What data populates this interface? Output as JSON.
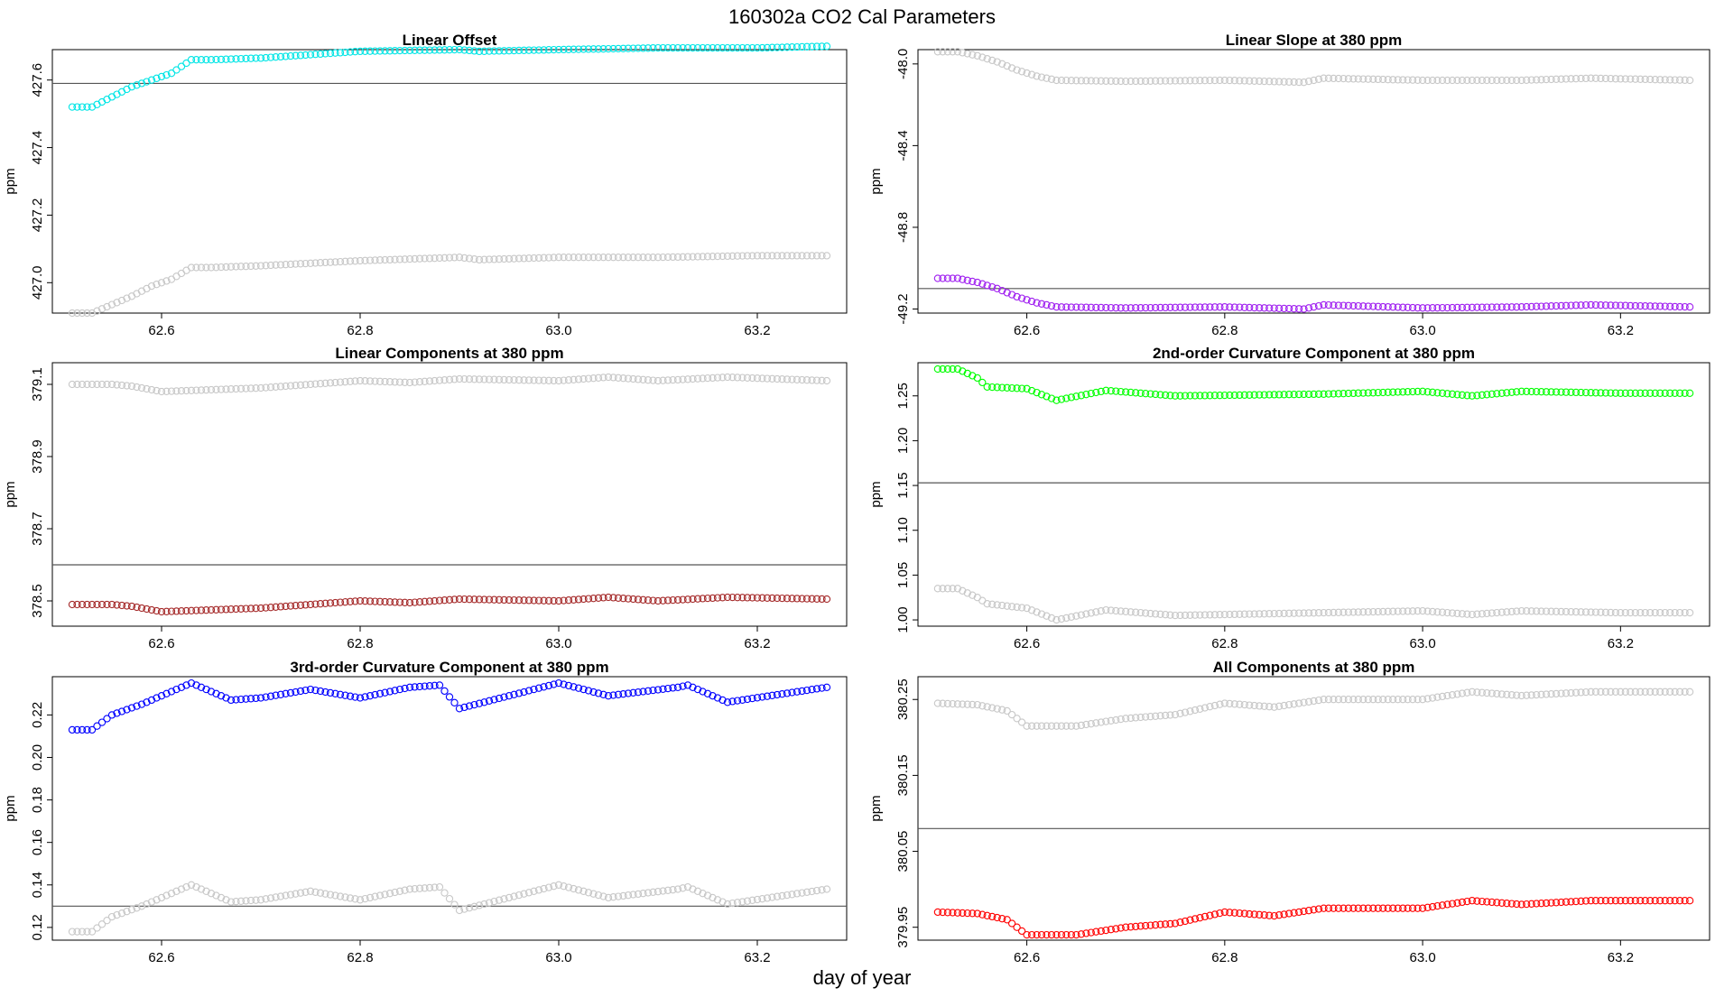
{
  "figure": {
    "title": "160302a   CO2 Cal Parameters",
    "xlabel": "day of year"
  },
  "colors": {
    "ref_series": "#c8c8c8",
    "hline": "#555555",
    "frame": "#000000"
  },
  "chart_data": [
    {
      "type": "scatter",
      "title": "Linear Offset",
      "ylabel": "ppm",
      "xlim": [
        62.49,
        63.29
      ],
      "ylim": [
        426.91,
        427.69
      ],
      "xticks": [
        62.6,
        62.8,
        63.0,
        63.2
      ],
      "xtick_labels": [
        "62.6",
        "62.8",
        "63.0",
        "63.2"
      ],
      "yticks": [
        427.0,
        427.2,
        427.4,
        427.6
      ],
      "ytick_labels": [
        "427.0",
        "427.2",
        "427.4",
        "427.6"
      ],
      "hline": 427.59,
      "series": [
        {
          "color": "#00e5e5",
          "points": [
            [
              62.51,
              427.52
            ],
            [
              62.53,
              427.52
            ],
            [
              62.55,
              427.55
            ],
            [
              62.57,
              427.58
            ],
            [
              62.59,
              427.6
            ],
            [
              62.61,
              427.62
            ],
            [
              62.63,
              427.66
            ],
            [
              62.65,
              427.66
            ],
            [
              62.7,
              427.665
            ],
            [
              62.8,
              427.685
            ],
            [
              62.9,
              427.69
            ],
            [
              62.92,
              427.685
            ],
            [
              63.0,
              427.69
            ],
            [
              63.1,
              427.695
            ],
            [
              63.2,
              427.695
            ],
            [
              63.27,
              427.7
            ]
          ]
        },
        {
          "color": "#c8c8c8",
          "points": [
            [
              62.51,
              426.91
            ],
            [
              62.53,
              426.91
            ],
            [
              62.55,
              426.935
            ],
            [
              62.57,
              426.96
            ],
            [
              62.59,
              426.99
            ],
            [
              62.61,
              427.01
            ],
            [
              62.63,
              427.045
            ],
            [
              62.65,
              427.045
            ],
            [
              62.7,
              427.05
            ],
            [
              62.8,
              427.065
            ],
            [
              62.9,
              427.075
            ],
            [
              62.92,
              427.068
            ],
            [
              63.0,
              427.075
            ],
            [
              63.1,
              427.075
            ],
            [
              63.2,
              427.08
            ],
            [
              63.27,
              427.08
            ]
          ]
        }
      ]
    },
    {
      "type": "scatter",
      "title": "Linear Slope at 380 ppm",
      "ylabel": "ppm",
      "xlim": [
        62.49,
        63.29
      ],
      "ylim": [
        -49.22,
        -47.93
      ],
      "xticks": [
        62.6,
        62.8,
        63.0,
        63.2
      ],
      "xtick_labels": [
        "62.6",
        "62.8",
        "63.0",
        "63.2"
      ],
      "yticks": [
        -48.0,
        -48.4,
        -48.8,
        -49.2
      ],
      "ytick_labels": [
        "-48.0",
        "-48.4",
        "-48.8",
        "-49.2"
      ],
      "hline": -49.1,
      "series": [
        {
          "color": "#a020f0",
          "points": [
            [
              62.51,
              -49.05
            ],
            [
              62.53,
              -49.05
            ],
            [
              62.55,
              -49.07
            ],
            [
              62.57,
              -49.1
            ],
            [
              62.59,
              -49.14
            ],
            [
              62.61,
              -49.17
            ],
            [
              62.63,
              -49.19
            ],
            [
              62.7,
              -49.195
            ],
            [
              62.8,
              -49.19
            ],
            [
              62.88,
              -49.2
            ],
            [
              62.9,
              -49.18
            ],
            [
              63.0,
              -49.195
            ],
            [
              63.1,
              -49.19
            ],
            [
              63.17,
              -49.18
            ],
            [
              63.27,
              -49.19
            ]
          ]
        },
        {
          "color": "#c8c8c8",
          "points": [
            [
              62.51,
              -47.94
            ],
            [
              62.53,
              -47.94
            ],
            [
              62.55,
              -47.96
            ],
            [
              62.57,
              -47.99
            ],
            [
              62.59,
              -48.03
            ],
            [
              62.61,
              -48.06
            ],
            [
              62.63,
              -48.08
            ],
            [
              62.7,
              -48.085
            ],
            [
              62.8,
              -48.08
            ],
            [
              62.88,
              -48.09
            ],
            [
              62.9,
              -48.07
            ],
            [
              63.0,
              -48.08
            ],
            [
              63.1,
              -48.08
            ],
            [
              63.17,
              -48.07
            ],
            [
              63.27,
              -48.08
            ]
          ]
        }
      ]
    },
    {
      "type": "scatter",
      "title": "Linear Components at 380 ppm",
      "ylabel": "ppm",
      "xlim": [
        62.49,
        63.29
      ],
      "ylim": [
        378.43,
        379.16
      ],
      "xticks": [
        62.6,
        62.8,
        63.0,
        63.2
      ],
      "xtick_labels": [
        "62.6",
        "62.8",
        "63.0",
        "63.2"
      ],
      "yticks": [
        378.5,
        378.7,
        378.9,
        379.1
      ],
      "ytick_labels": [
        "378.5",
        "378.7",
        "378.9",
        "379.1"
      ],
      "hline": 378.6,
      "series": [
        {
          "color": "#a52a2a",
          "points": [
            [
              62.51,
              378.49
            ],
            [
              62.55,
              378.49
            ],
            [
              62.57,
              378.485
            ],
            [
              62.6,
              378.47
            ],
            [
              62.65,
              378.475
            ],
            [
              62.7,
              378.48
            ],
            [
              62.8,
              378.5
            ],
            [
              62.85,
              378.495
            ],
            [
              62.9,
              378.505
            ],
            [
              63.0,
              378.5
            ],
            [
              63.05,
              378.51
            ],
            [
              63.1,
              378.5
            ],
            [
              63.17,
              378.51
            ],
            [
              63.27,
              378.505
            ]
          ]
        },
        {
          "color": "#c8c8c8",
          "points": [
            [
              62.51,
              379.1
            ],
            [
              62.55,
              379.1
            ],
            [
              62.57,
              379.095
            ],
            [
              62.6,
              379.08
            ],
            [
              62.65,
              379.085
            ],
            [
              62.7,
              379.09
            ],
            [
              62.8,
              379.11
            ],
            [
              62.85,
              379.105
            ],
            [
              62.9,
              379.115
            ],
            [
              63.0,
              379.11
            ],
            [
              63.05,
              379.12
            ],
            [
              63.1,
              379.11
            ],
            [
              63.17,
              379.12
            ],
            [
              63.27,
              379.11
            ]
          ]
        }
      ]
    },
    {
      "type": "scatter",
      "title": "2nd-order Curvature Component at 380 ppm",
      "ylabel": "ppm",
      "xlim": [
        62.49,
        63.29
      ],
      "ylim": [
        0.993,
        1.287
      ],
      "xticks": [
        62.6,
        62.8,
        63.0,
        63.2
      ],
      "xtick_labels": [
        "62.6",
        "62.8",
        "63.0",
        "63.2"
      ],
      "yticks": [
        1.0,
        1.05,
        1.1,
        1.15,
        1.2,
        1.25
      ],
      "ytick_labels": [
        "1.00",
        "1.05",
        "1.10",
        "1.15",
        "1.20",
        "1.25"
      ],
      "hline": 1.153,
      "series": [
        {
          "color": "#00ff00",
          "points": [
            [
              62.51,
              1.28
            ],
            [
              62.53,
              1.28
            ],
            [
              62.55,
              1.27
            ],
            [
              62.56,
              1.26
            ],
            [
              62.6,
              1.258
            ],
            [
              62.63,
              1.245
            ],
            [
              62.68,
              1.256
            ],
            [
              62.75,
              1.25
            ],
            [
              62.9,
              1.252
            ],
            [
              63.0,
              1.255
            ],
            [
              63.05,
              1.25
            ],
            [
              63.1,
              1.255
            ],
            [
              63.2,
              1.253
            ],
            [
              63.27,
              1.253
            ]
          ]
        },
        {
          "color": "#c8c8c8",
          "points": [
            [
              62.51,
              1.035
            ],
            [
              62.53,
              1.035
            ],
            [
              62.55,
              1.025
            ],
            [
              62.56,
              1.018
            ],
            [
              62.6,
              1.013
            ],
            [
              62.63,
              1.0
            ],
            [
              62.68,
              1.011
            ],
            [
              62.75,
              1.005
            ],
            [
              62.9,
              1.008
            ],
            [
              63.0,
              1.01
            ],
            [
              63.05,
              1.006
            ],
            [
              63.1,
              1.01
            ],
            [
              63.2,
              1.008
            ],
            [
              63.27,
              1.008
            ]
          ]
        }
      ]
    },
    {
      "type": "scatter",
      "title": "3rd-order Curvature Component at 380 ppm",
      "ylabel": "ppm",
      "xlim": [
        62.49,
        63.29
      ],
      "ylim": [
        0.114,
        0.238
      ],
      "xticks": [
        62.6,
        62.8,
        63.0,
        63.2
      ],
      "xtick_labels": [
        "62.6",
        "62.8",
        "63.0",
        "63.2"
      ],
      "yticks": [
        0.12,
        0.14,
        0.16,
        0.18,
        0.2,
        0.22
      ],
      "ytick_labels": [
        "0.12",
        "0.14",
        "0.16",
        "0.18",
        "0.20",
        "0.22"
      ],
      "hline": 0.13,
      "series": [
        {
          "color": "#0000ff",
          "points": [
            [
              62.51,
              0.213
            ],
            [
              62.53,
              0.213
            ],
            [
              62.55,
              0.22
            ],
            [
              62.58,
              0.225
            ],
            [
              62.6,
              0.229
            ],
            [
              62.63,
              0.235
            ],
            [
              62.67,
              0.227
            ],
            [
              62.7,
              0.228
            ],
            [
              62.75,
              0.232
            ],
            [
              62.8,
              0.228
            ],
            [
              62.85,
              0.233
            ],
            [
              62.88,
              0.234
            ],
            [
              62.9,
              0.223
            ],
            [
              63.0,
              0.235
            ],
            [
              63.05,
              0.229
            ],
            [
              63.12,
              0.233
            ],
            [
              63.13,
              0.234
            ],
            [
              63.17,
              0.226
            ],
            [
              63.27,
              0.233
            ]
          ]
        },
        {
          "color": "#c8c8c8",
          "points": [
            [
              62.51,
              0.118
            ],
            [
              62.53,
              0.118
            ],
            [
              62.55,
              0.125
            ],
            [
              62.58,
              0.13
            ],
            [
              62.6,
              0.134
            ],
            [
              62.63,
              0.14
            ],
            [
              62.67,
              0.132
            ],
            [
              62.7,
              0.133
            ],
            [
              62.75,
              0.137
            ],
            [
              62.8,
              0.133
            ],
            [
              62.85,
              0.138
            ],
            [
              62.88,
              0.139
            ],
            [
              62.9,
              0.128
            ],
            [
              63.0,
              0.14
            ],
            [
              63.05,
              0.134
            ],
            [
              63.12,
              0.138
            ],
            [
              63.13,
              0.139
            ],
            [
              63.17,
              0.131
            ],
            [
              63.27,
              0.138
            ]
          ]
        }
      ]
    },
    {
      "type": "scatter",
      "title": "All Components at 380 ppm",
      "ylabel": "ppm",
      "xlim": [
        62.49,
        63.29
      ],
      "ylim": [
        379.933,
        380.28
      ],
      "xticks": [
        62.6,
        62.8,
        63.0,
        63.2
      ],
      "xtick_labels": [
        "62.6",
        "62.8",
        "63.0",
        "63.2"
      ],
      "yticks": [
        379.95,
        380.05,
        380.15,
        380.25
      ],
      "ytick_labels": [
        "379.95",
        "380.05",
        "380.15",
        "380.25"
      ],
      "hline": 380.08,
      "series": [
        {
          "color": "#ff0000",
          "points": [
            [
              62.51,
              379.97
            ],
            [
              62.55,
              379.968
            ],
            [
              62.58,
              379.96
            ],
            [
              62.6,
              379.94
            ],
            [
              62.65,
              379.94
            ],
            [
              62.7,
              379.95
            ],
            [
              62.75,
              379.955
            ],
            [
              62.8,
              379.97
            ],
            [
              62.85,
              379.965
            ],
            [
              62.9,
              379.975
            ],
            [
              63.0,
              379.975
            ],
            [
              63.05,
              379.985
            ],
            [
              63.1,
              379.98
            ],
            [
              63.17,
              379.985
            ],
            [
              63.2,
              379.985
            ],
            [
              63.27,
              379.985
            ]
          ]
        },
        {
          "color": "#c8c8c8",
          "points": [
            [
              62.51,
              380.245
            ],
            [
              62.55,
              380.243
            ],
            [
              62.58,
              380.235
            ],
            [
              62.6,
              380.215
            ],
            [
              62.65,
              380.215
            ],
            [
              62.7,
              380.225
            ],
            [
              62.75,
              380.23
            ],
            [
              62.8,
              380.245
            ],
            [
              62.85,
              380.24
            ],
            [
              62.9,
              380.25
            ],
            [
              63.0,
              380.25
            ],
            [
              63.05,
              380.26
            ],
            [
              63.1,
              380.255
            ],
            [
              63.17,
              380.26
            ],
            [
              63.2,
              380.26
            ],
            [
              63.27,
              380.26
            ]
          ]
        }
      ]
    }
  ]
}
